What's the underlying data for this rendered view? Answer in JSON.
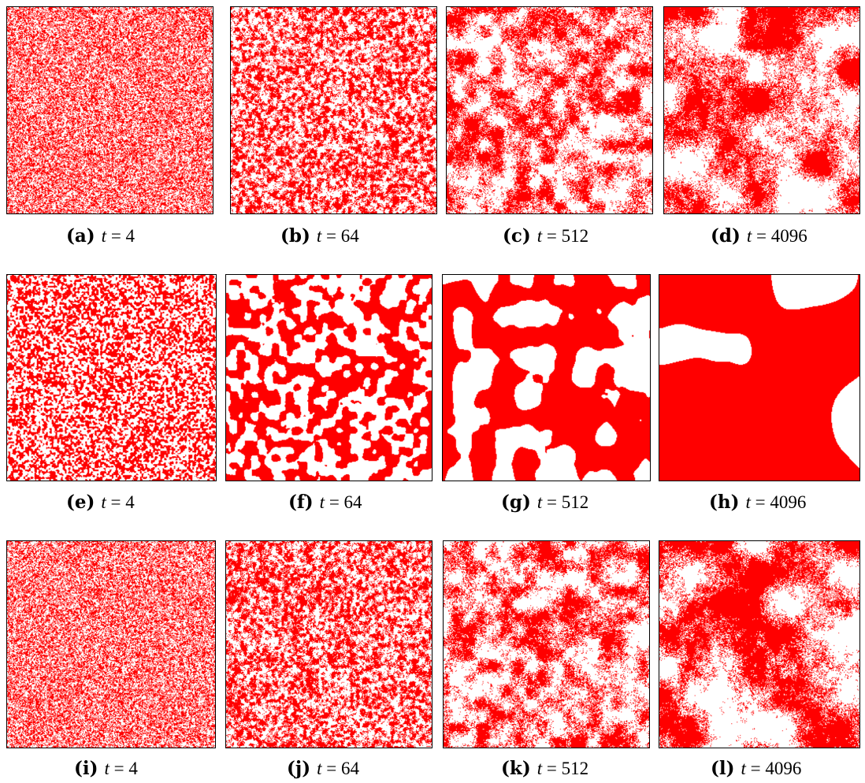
{
  "figure": {
    "colors": {
      "occupied": "#ff0000",
      "empty": "#ffffff",
      "frame": "#000000"
    },
    "rows": [
      {
        "pattern": "speckled-clusters",
        "panels": [
          {
            "label": "(a)",
            "var": "t",
            "value": "4"
          },
          {
            "label": "(b)",
            "var": "t",
            "value": "64"
          },
          {
            "label": "(c)",
            "var": "t",
            "value": "512"
          },
          {
            "label": "(d)",
            "var": "t",
            "value": "4096"
          }
        ]
      },
      {
        "pattern": "smooth-coarsening",
        "panels": [
          {
            "label": "(e)",
            "var": "t",
            "value": "4"
          },
          {
            "label": "(f)",
            "var": "t",
            "value": "64"
          },
          {
            "label": "(g)",
            "var": "t",
            "value": "512"
          },
          {
            "label": "(h)",
            "var": "t",
            "value": "4096"
          }
        ]
      },
      {
        "pattern": "speckled-clusters",
        "panels": [
          {
            "label": "(i)",
            "var": "t",
            "value": "4"
          },
          {
            "label": "(j)",
            "var": "t",
            "value": "64"
          },
          {
            "label": "(k)",
            "var": "t",
            "value": "512"
          },
          {
            "label": "(l)",
            "var": "t",
            "value": "4096"
          }
        ]
      }
    ]
  }
}
